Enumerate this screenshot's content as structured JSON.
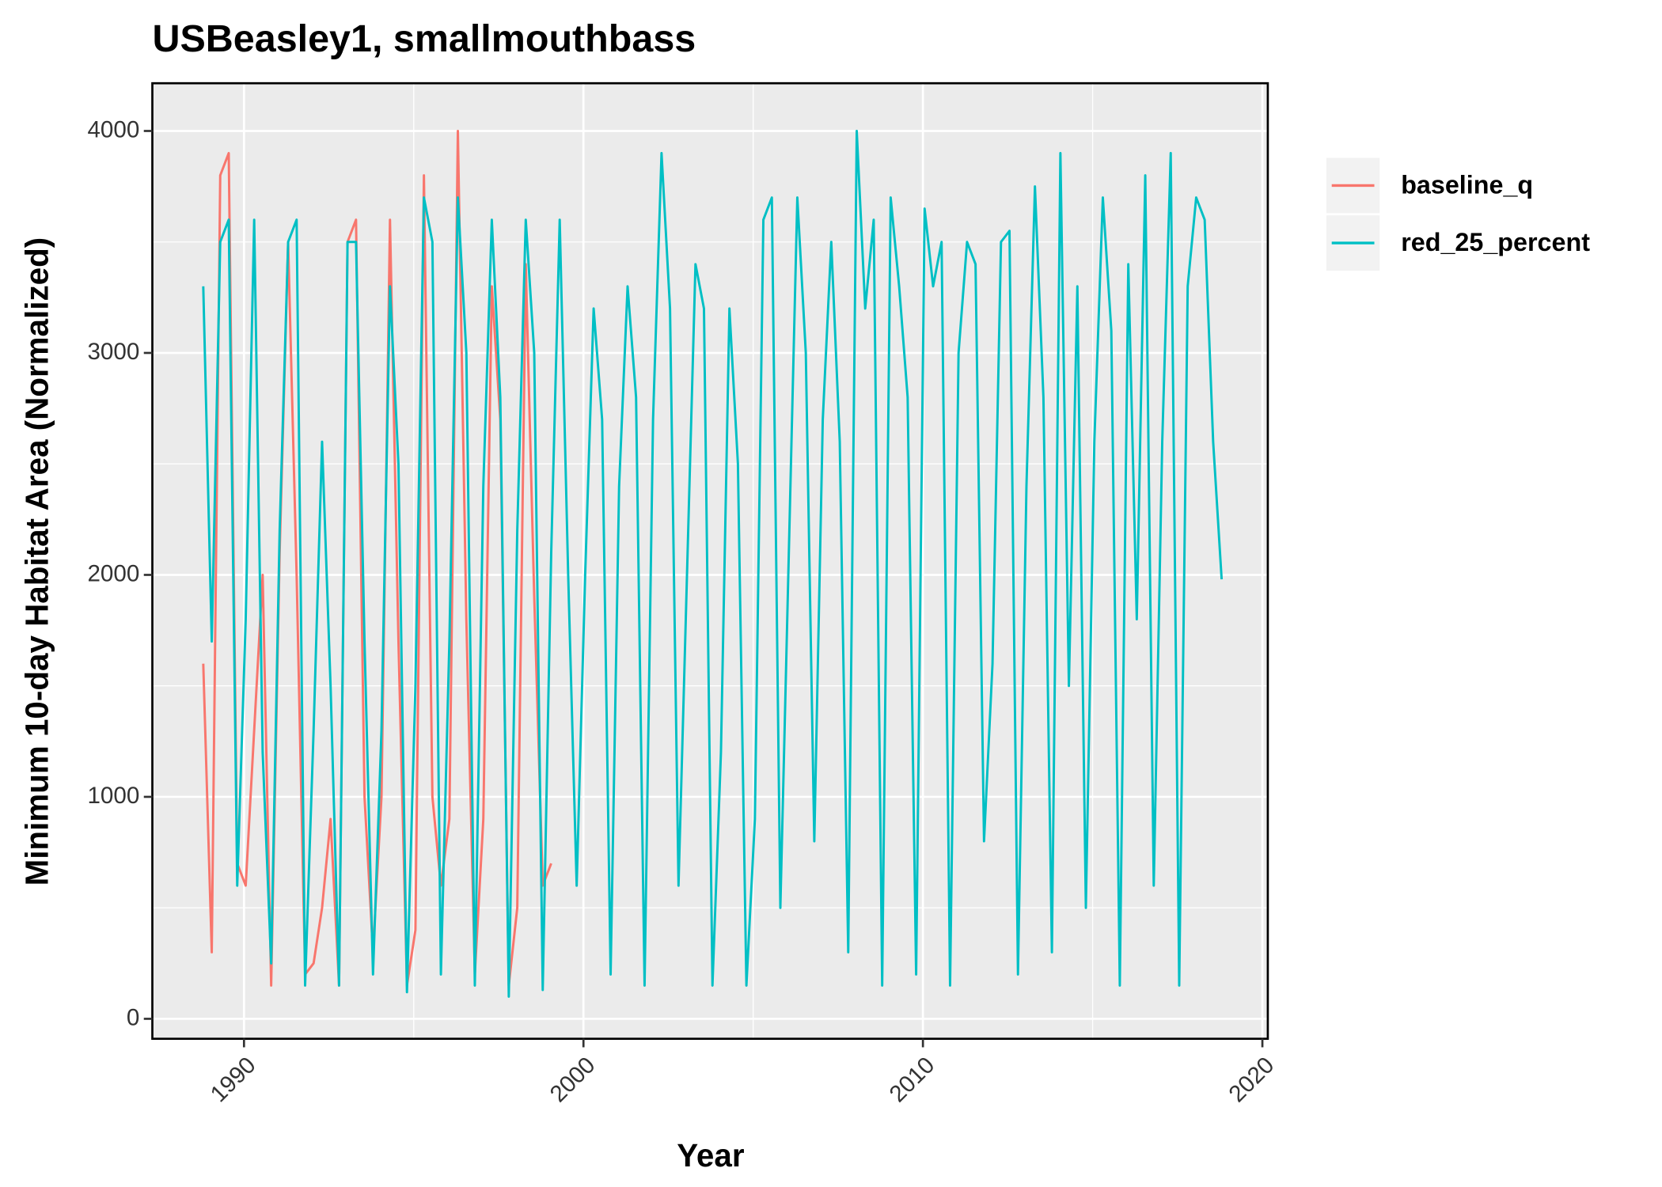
{
  "chart_data": {
    "type": "line",
    "title": "USBeasley1, smallmouthbass",
    "x_label": "Year",
    "y_label": "Minimum 10-day Habitat Area (Normalized)",
    "x": [
      1988.8,
      1989.05,
      1989.3,
      1989.55,
      1989.8,
      1990.05,
      1990.3,
      1990.55,
      1990.8,
      1991.05,
      1991.3,
      1991.55,
      1991.8,
      1992.05,
      1992.3,
      1992.55,
      1992.8,
      1993.05,
      1993.3,
      1993.55,
      1993.8,
      1994.05,
      1994.3,
      1994.55,
      1994.8,
      1995.05,
      1995.3,
      1995.55,
      1995.8,
      1996.05,
      1996.3,
      1996.55,
      1996.8,
      1997.05,
      1997.3,
      1997.55,
      1997.8,
      1998.05,
      1998.3,
      1998.55,
      1998.8,
      1999.05,
      1999.3,
      1999.55,
      1999.8,
      2000.05,
      2000.3,
      2000.55,
      2000.8,
      2001.05,
      2001.3,
      2001.55,
      2001.8,
      2002.05,
      2002.3,
      2002.55,
      2002.8,
      2003.05,
      2003.3,
      2003.55,
      2003.8,
      2004.05,
      2004.3,
      2004.55,
      2004.8,
      2005.05,
      2005.3,
      2005.55,
      2005.8,
      2006.05,
      2006.3,
      2006.55,
      2006.8,
      2007.05,
      2007.3,
      2007.55,
      2007.8,
      2008.05,
      2008.3,
      2008.55,
      2008.8,
      2009.05,
      2009.3,
      2009.55,
      2009.8,
      2010.05,
      2010.3,
      2010.55,
      2010.8,
      2011.05,
      2011.3,
      2011.55,
      2011.8,
      2012.05,
      2012.3,
      2012.55,
      2012.8,
      2013.05,
      2013.3,
      2013.55,
      2013.8,
      2014.05,
      2014.3,
      2014.55,
      2014.8,
      2015.05,
      2015.3,
      2015.55,
      2015.8,
      2016.05,
      2016.3,
      2016.55,
      2016.8,
      2017.05,
      2017.3,
      2017.55,
      2017.8,
      2018.05,
      2018.3,
      2018.55,
      2018.8
    ],
    "series": [
      {
        "name": "baseline_q",
        "color": "#F8766D",
        "values": [
          1600,
          300,
          3800,
          3900,
          700,
          600,
          1300,
          2000,
          150,
          2100,
          3500,
          2000,
          200,
          250,
          500,
          900,
          150,
          3500,
          3600,
          1000,
          300,
          1000,
          3600,
          1700,
          150,
          400,
          3800,
          1000,
          600,
          900,
          4000,
          1800,
          200,
          900,
          3300,
          2700,
          150,
          500,
          3400,
          1900,
          600,
          700,
          null,
          null,
          null,
          null,
          null,
          null,
          null,
          null,
          null,
          null,
          null,
          null,
          null,
          null,
          null,
          null,
          null,
          null,
          null,
          null,
          null,
          null,
          null,
          null,
          null,
          null,
          null,
          null,
          null,
          null,
          null,
          null,
          null,
          null,
          null,
          null,
          null,
          null,
          null,
          null,
          null,
          null,
          null,
          null,
          null,
          null,
          null,
          null,
          null,
          null,
          null,
          null,
          null,
          null,
          null,
          null,
          null,
          null,
          null,
          null,
          null,
          null,
          null,
          null,
          null,
          null,
          null,
          null,
          null,
          null,
          null,
          null,
          null,
          null,
          null,
          null,
          null,
          null,
          null
        ]
      },
      {
        "name": "red_25_percent",
        "color": "#00BFC4",
        "values": [
          3300,
          1700,
          3500,
          3600,
          600,
          1800,
          3600,
          1200,
          250,
          2200,
          3500,
          3600,
          150,
          1300,
          2600,
          1500,
          150,
          3500,
          3500,
          1700,
          200,
          1300,
          3300,
          2500,
          120,
          1500,
          3700,
          3500,
          200,
          1700,
          3700,
          3000,
          150,
          2400,
          3600,
          2800,
          100,
          2200,
          3600,
          3000,
          130,
          2100,
          3600,
          2000,
          600,
          2000,
          3200,
          2700,
          200,
          2400,
          3300,
          2800,
          150,
          2700,
          3900,
          3200,
          600,
          2000,
          3400,
          3200,
          150,
          1200,
          3200,
          2500,
          150,
          900,
          3600,
          3700,
          500,
          2100,
          3700,
          3000,
          800,
          2700,
          3500,
          2600,
          300,
          4000,
          3200,
          3600,
          150,
          3700,
          3300,
          2800,
          200,
          3650,
          3300,
          3500,
          150,
          3000,
          3500,
          3400,
          800,
          1600,
          3500,
          3550,
          200,
          2400,
          3750,
          2800,
          300,
          3900,
          1500,
          3300,
          500,
          2600,
          3700,
          3100,
          150,
          3400,
          1800,
          3800,
          600,
          2600,
          3900,
          150,
          3300,
          3700,
          3600,
          2600,
          1980
        ]
      }
    ],
    "xlim": [
      1987.3,
      2020.16
    ],
    "xticks": [
      1990,
      2000,
      2010,
      2020
    ],
    "ylim": [
      -90,
      4215
    ],
    "yticks": [
      0,
      1000,
      2000,
      3000,
      4000
    ],
    "grid": true,
    "legend": "right"
  }
}
